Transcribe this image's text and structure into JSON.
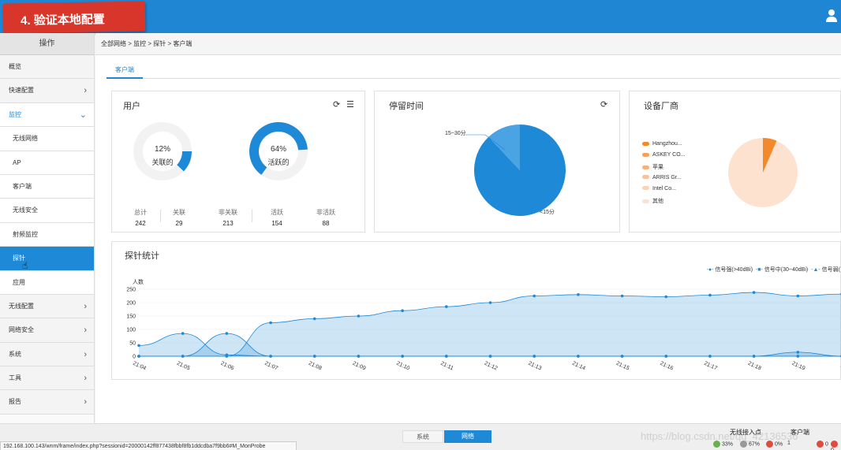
{
  "banner": {
    "title": "4. 验证本地配置"
  },
  "sidebar": {
    "header": "操作",
    "items": [
      {
        "label": "概览",
        "type": "top"
      },
      {
        "label": "快速配置",
        "type": "top",
        "chevron": "›"
      },
      {
        "label": "监控",
        "type": "open",
        "chevron": "⌄"
      },
      {
        "label": "无线网络",
        "type": "sub"
      },
      {
        "label": "AP",
        "type": "sub"
      },
      {
        "label": "客户端",
        "type": "sub"
      },
      {
        "label": "无线安全",
        "type": "sub"
      },
      {
        "label": "射频监控",
        "type": "sub"
      },
      {
        "label": "探针",
        "type": "active"
      },
      {
        "label": "应用",
        "type": "sub"
      },
      {
        "label": "无线配置",
        "type": "top",
        "chevron": "›"
      },
      {
        "label": "网络安全",
        "type": "top",
        "chevron": "›"
      },
      {
        "label": "系统",
        "type": "top",
        "chevron": "›"
      },
      {
        "label": "工具",
        "type": "top",
        "chevron": "›"
      },
      {
        "label": "报告",
        "type": "top",
        "chevron": "›"
      }
    ]
  },
  "breadcrumb": "全部网络 > 监控 > 探针 > 客户端",
  "tabs": {
    "active": "客户端"
  },
  "users_card": {
    "title": "用户",
    "donut1": {
      "percent": "12%",
      "label": "关联的",
      "fraction": 0.12
    },
    "donut2": {
      "percent": "64%",
      "label": "活跃的",
      "fraction": 0.64
    },
    "stats": [
      {
        "label": "总计",
        "value": "242"
      },
      {
        "label": "关联",
        "value": "29"
      },
      {
        "label": "非关联",
        "value": "213"
      },
      {
        "label": "活跃",
        "value": "154"
      },
      {
        "label": "非活跃",
        "value": "88"
      }
    ]
  },
  "dwell_card": {
    "title": "停留时间",
    "labels": [
      "15~30分",
      "<15分"
    ],
    "fractions": [
      0.1,
      0.9
    ]
  },
  "vendor_card": {
    "title": "设备厂商",
    "legend": [
      "Hangzhou...",
      "ASKEY CO...",
      "苹果",
      "ARRIS Gr...",
      "Intel Co...",
      "其他"
    ],
    "colors": [
      "#f28a2c",
      "#f5a15a",
      "#f7b27a",
      "#f9c39a",
      "#fbd3b6",
      "#fde2cf"
    ]
  },
  "probe_card": {
    "title": "探针统计",
    "y_unit": "人数",
    "legend": [
      "信号强(>40dBi)",
      "信号中(30~40dBi)",
      "信号弱("
    ]
  },
  "chart_data": {
    "type": "area",
    "title": "探针统计",
    "ylabel": "人数",
    "ylim": [
      0,
      250
    ],
    "yticks": [
      0,
      50,
      100,
      150,
      200,
      250
    ],
    "x": [
      "21:04",
      "21:05",
      "21:06",
      "21:07",
      "21:08",
      "21:09",
      "21:10",
      "21:11",
      "21:12",
      "21:13",
      "21:14",
      "21:15",
      "21:16",
      "21:17",
      "21:18",
      "21:19",
      "2"
    ],
    "series": [
      {
        "name": "信号强(>40dBi)",
        "values": [
          0,
          0,
          0,
          125,
          140,
          150,
          170,
          185,
          200,
          225,
          230,
          225,
          222,
          228,
          238,
          225,
          232
        ]
      },
      {
        "name": "信号中(30~40dBi)",
        "values": [
          0,
          0,
          0,
          0,
          0,
          0,
          0,
          0,
          0,
          0,
          0,
          0,
          0,
          0,
          0,
          15,
          0
        ]
      },
      {
        "name": "信号弱(",
        "values": [
          40,
          85,
          5,
          0,
          0,
          0,
          0,
          0,
          0,
          0,
          0,
          0,
          0,
          0,
          0,
          0,
          0
        ]
      },
      {
        "values": [
          0,
          0,
          85,
          0,
          0,
          0,
          0,
          0,
          0,
          0,
          0,
          0,
          0,
          0,
          0,
          0,
          0
        ]
      }
    ]
  },
  "footer": {
    "btn_system": "系统",
    "btn_network": "网络",
    "url": "192.168.100.143/wnm/frame/index.php?sessionid=20000142ff877438fbbf8fb1ddcdba7f9bb6#M_MonProbe",
    "watermark": "https://blog.csdn.net/qq_42136536",
    "label_wireless": "无线接入点",
    "label_clients": "客户端",
    "ind1": "33%",
    "ind2": "67%",
    "ind3": "0%",
    "ind4": "1",
    "ind5": "0",
    "ind6": "0"
  }
}
